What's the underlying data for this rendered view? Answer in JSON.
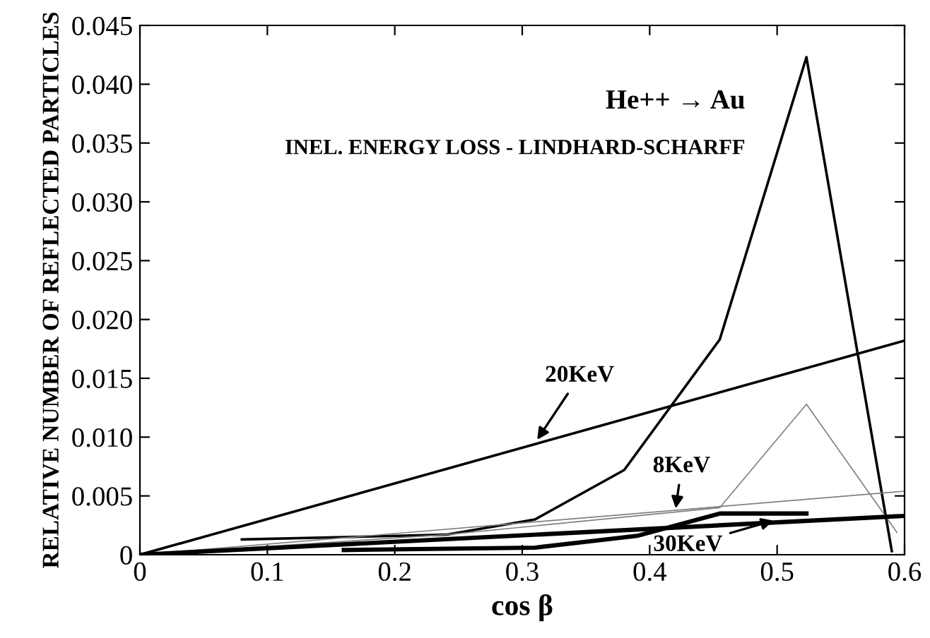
{
  "chart_data": {
    "type": "line",
    "xlabel": "cos β",
    "ylabel": "RELATIVE NUMBER OF REFLECTED PARTICLES",
    "xlim": [
      0,
      0.6
    ],
    "ylim": [
      0,
      0.045
    ],
    "xticks": [
      0,
      0.1,
      0.2,
      0.3,
      0.4,
      0.5,
      0.6
    ],
    "yticks": [
      0,
      0.005,
      {
        "value": 0.01,
        "label": "0.010"
      },
      0.015,
      {
        "value": 0.02,
        "label": "0.020"
      },
      0.025,
      {
        "value": 0.03,
        "label": "0.030"
      },
      0.035,
      {
        "value": 0.04,
        "label": "0.040"
      },
      0.045
    ],
    "grid": false,
    "legend": false,
    "marker": "none",
    "line_style": "solid",
    "series": [
      {
        "color": "#000000",
        "x": [
          0,
          0.6
        ],
        "values": [
          0,
          0.0182
        ]
      },
      {
        "color": "#000000",
        "x": [
          0.08,
          0.24,
          0.31,
          0.38,
          0.455,
          0.523,
          0.59
        ],
        "values": [
          0.0013,
          0.0017,
          0.003,
          0.0072,
          0.0183,
          0.0423,
          0.0003
        ]
      },
      {
        "color": "#808080",
        "x": [
          0,
          0.24,
          0.455,
          0.523,
          0.594
        ],
        "values": [
          0,
          0.0017,
          0.004,
          0.0128,
          0.0019
        ]
      },
      {
        "color": "#808080",
        "x": [
          0,
          0.6
        ],
        "values": [
          0,
          0.0054
        ]
      },
      {
        "color": "#000000",
        "x": [
          0,
          0.6
        ],
        "values": [
          0,
          0.0033
        ]
      },
      {
        "color": "#000000",
        "x": [
          0.16,
          0.31,
          0.39,
          0.455,
          0.523
        ],
        "values": [
          0.0004,
          0.0006,
          0.0016,
          0.0035,
          0.0035
        ]
      }
    ],
    "annotations": [
      "He++ → Au",
      "INEL. ENERGY LOSS - LINDHARD-SCHARFF",
      {
        "text": "20KeV",
        "x": 0.31,
        "y": 0.0095
      },
      {
        "text": "8KeV",
        "x": 0.42,
        "y": 0.0036
      },
      {
        "text": "30KeV",
        "x": 0.5,
        "y": 0.003
      }
    ]
  }
}
